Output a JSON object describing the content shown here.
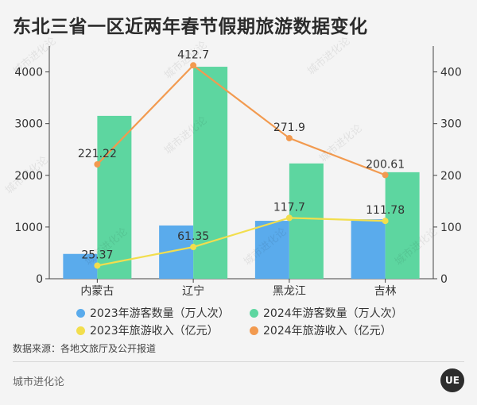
{
  "title": "东北三省一区近两年春节假期旅游数据变化",
  "source": "数据来源：各地文旅厅及公开报道",
  "brand": "城市进化论",
  "logo_text": "UE",
  "watermark_text": "城市进化论",
  "chart_data": {
    "type": "bar+line",
    "categories": [
      "内蒙古",
      "辽宁",
      "黑龙江",
      "吉林"
    ],
    "series": [
      {
        "name": "2023年游客数量（万人次）",
        "type": "bar",
        "axis": "left",
        "color": "#5aabec",
        "values": [
          480,
          1030,
          1120,
          1150
        ]
      },
      {
        "name": "2024年游客数量（万人次）",
        "type": "bar",
        "axis": "left",
        "color": "#5dd6a0",
        "values": [
          3150,
          4100,
          2230,
          2060
        ]
      },
      {
        "name": "2023年旅游收入（亿元）",
        "type": "line",
        "axis": "right",
        "color": "#f2de4d",
        "values": [
          25.37,
          61.35,
          117.7,
          111.78
        ],
        "labels": [
          "25.37",
          "61.35",
          "117.7",
          "111.78"
        ]
      },
      {
        "name": "2024年旅游收入（亿元）",
        "type": "line",
        "axis": "right",
        "color": "#f29a4f",
        "values": [
          221.22,
          412.7,
          271.9,
          200.61
        ],
        "labels": [
          "221.22",
          "412.7",
          "271.9",
          "200.61"
        ]
      }
    ],
    "y_left": {
      "min": 0,
      "max": 4500,
      "ticks": [
        0,
        1000,
        2000,
        3000,
        4000
      ]
    },
    "y_right": {
      "min": 0,
      "max": 450,
      "ticks": [
        0,
        100,
        200,
        300,
        400
      ]
    },
    "legend_position": "bottom",
    "grid": false
  }
}
